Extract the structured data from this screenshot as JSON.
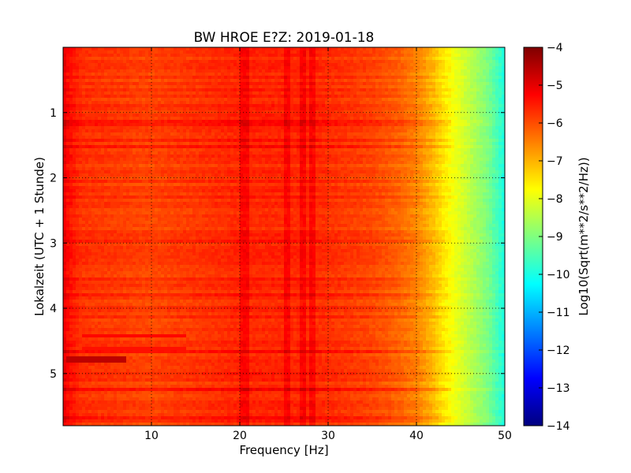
{
  "chart_data": {
    "type": "heatmap",
    "title": "BW HROE E?Z: 2019-01-18",
    "xlabel": "Frequency [Hz]",
    "ylabel": "Lokalzeit (UTC + 1 Stunde)",
    "xlim": [
      0,
      50
    ],
    "ylim": [
      0,
      5.8
    ],
    "y_inverted": true,
    "x_ticks": [
      10,
      20,
      30,
      40,
      50
    ],
    "x_tick_labels": [
      "10",
      "20",
      "30",
      "40",
      "50"
    ],
    "y_ticks": [
      1,
      2,
      3,
      4,
      5
    ],
    "y_tick_labels": [
      "1",
      "2",
      "3",
      "4",
      "5"
    ],
    "grid": true,
    "colorbar": {
      "label": "Log10(Sqrt(m**2/s**2/Hz))",
      "min": -14,
      "max": -4,
      "ticks": [
        -4,
        -5,
        -6,
        -7,
        -8,
        -9,
        -10,
        -11,
        -12,
        -13,
        -14
      ],
      "tick_labels": [
        "−4",
        "−5",
        "−6",
        "−7",
        "−8",
        "−9",
        "−10",
        "−11",
        "−12",
        "−13",
        "−14"
      ],
      "colormap": "jet"
    },
    "frequency_profile": {
      "frequency_hz": [
        0,
        0.5,
        2,
        10,
        20,
        25,
        28,
        35,
        38,
        40,
        41,
        42,
        43,
        44,
        45,
        46,
        47,
        48,
        49,
        50
      ],
      "level": [
        -5.0,
        -5.3,
        -5.7,
        -5.9,
        -5.6,
        -5.6,
        -5.6,
        -5.9,
        -6.2,
        -6.5,
        -6.8,
        -7.1,
        -7.5,
        -7.8,
        -8.1,
        -8.4,
        -8.7,
        -9.0,
        -9.5,
        -10.0
      ]
    },
    "resonance_lines_hz": [
      20.5,
      25.3,
      27.2,
      28.2
    ],
    "noise_bursts": [
      {
        "time_h": 4.78,
        "freq_range_hz": [
          0.5,
          7.0
        ],
        "level": -4.6
      },
      {
        "time_h": 4.42,
        "freq_range_hz": [
          2.0,
          14.0
        ],
        "level": -5.3
      },
      {
        "time_h": 4.65,
        "freq_range_hz": [
          2.0,
          14.0
        ],
        "level": -5.4
      }
    ]
  }
}
